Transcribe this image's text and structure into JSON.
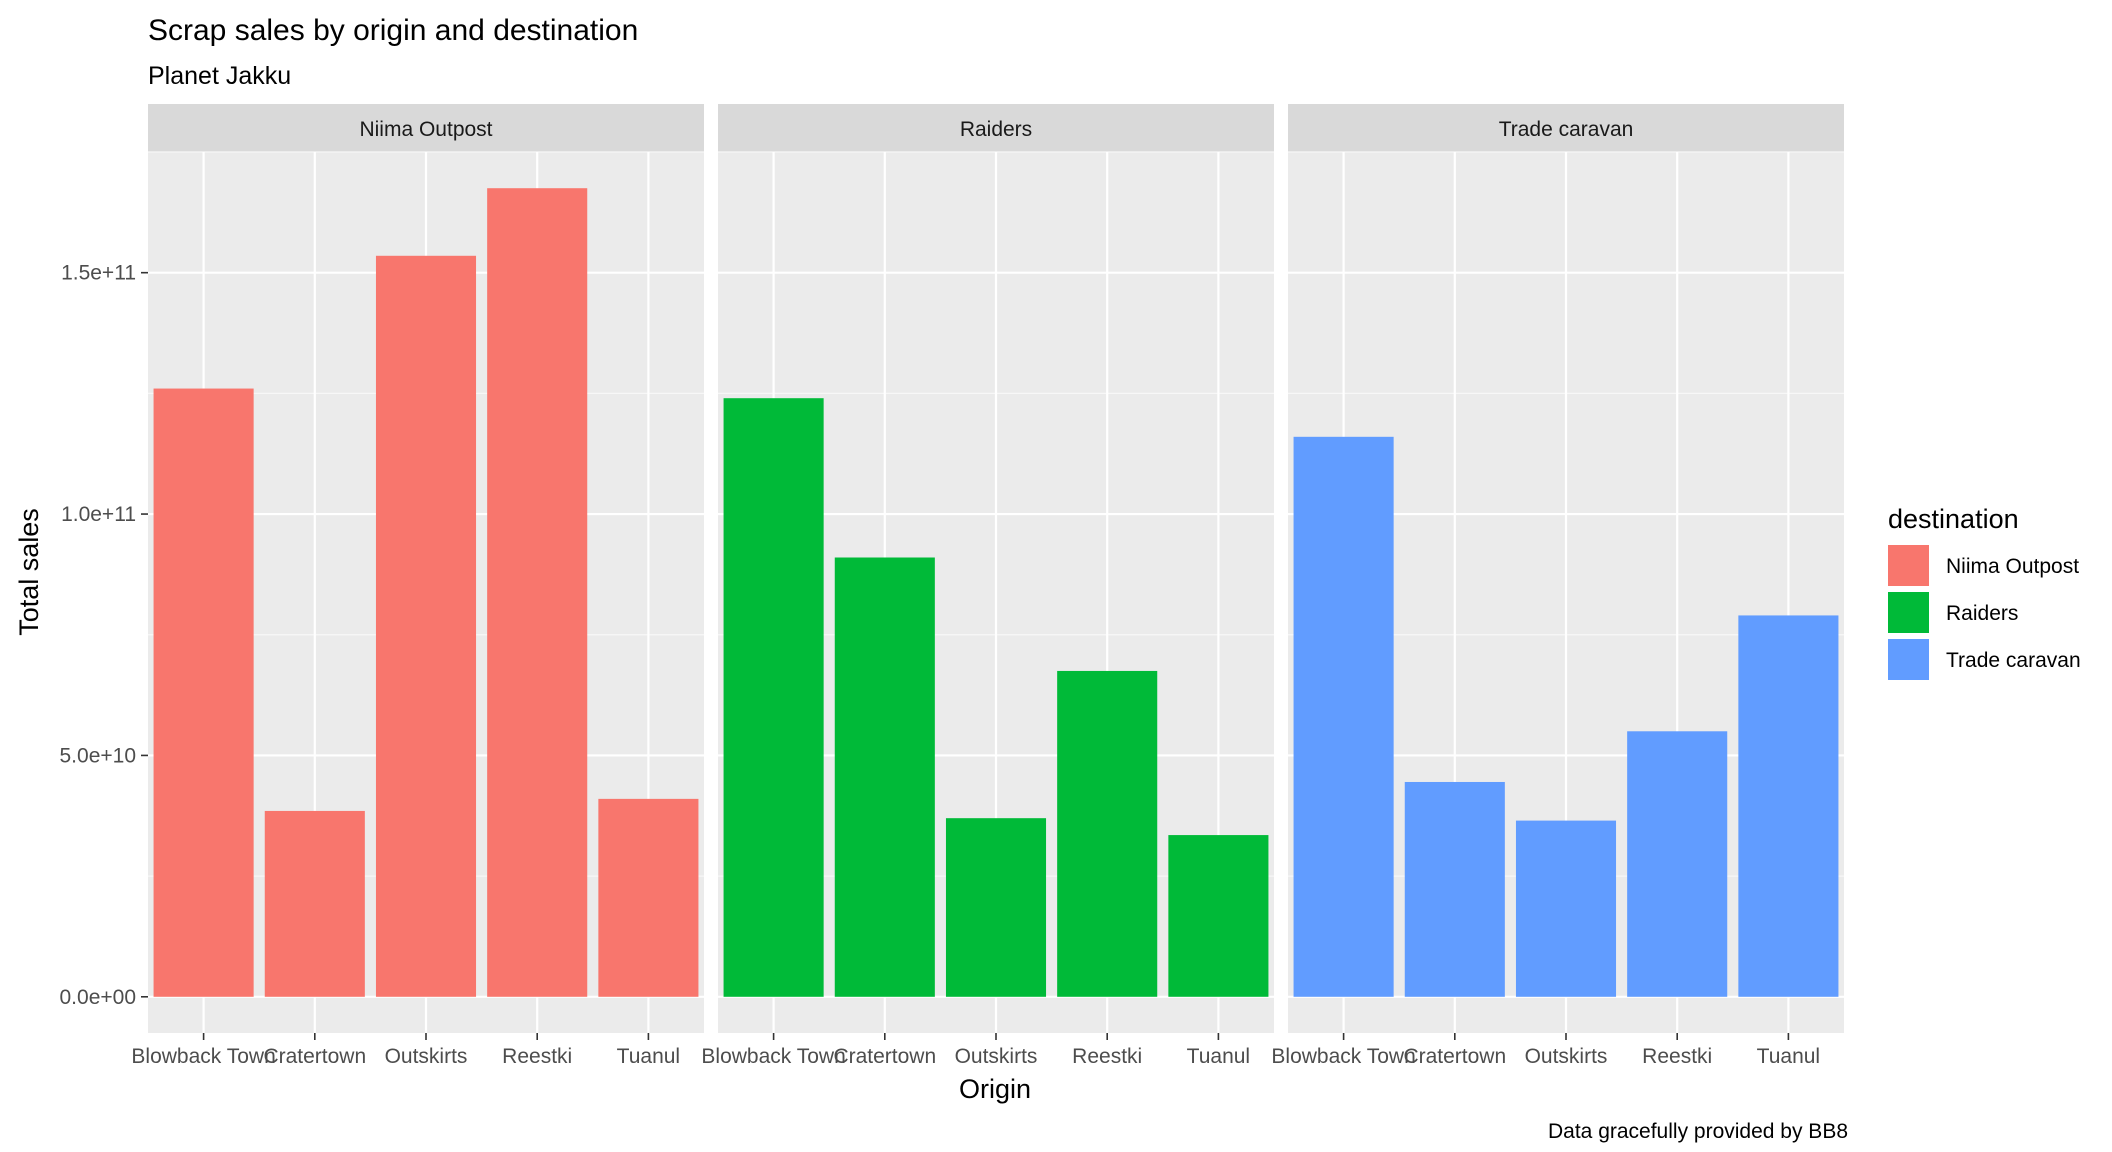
{
  "chart_data": {
    "type": "bar",
    "title": "Scrap sales by origin and destination",
    "subtitle": "Planet Jakku",
    "xlabel": "Origin",
    "ylabel": "Total sales",
    "caption": "Data gracefully provided by BB8",
    "legend_title": "destination",
    "legend_position": "right",
    "facet_by": "destination",
    "categories": [
      "Blowback Town",
      "Cratertown",
      "Outskirts",
      "Reestki",
      "Tuanul"
    ],
    "ylim": [
      -7500000000,
      175000000000
    ],
    "y_ticks": [
      0,
      50000000000,
      100000000000,
      150000000000
    ],
    "y_tick_labels": [
      "0.0e+00",
      "5.0e+10",
      "1.0e+11",
      "1.5e+11"
    ],
    "grid": true,
    "series": [
      {
        "name": "Niima Outpost",
        "color": "#F8766D",
        "values": [
          126000000000,
          38500000000,
          153500000000,
          167500000000,
          41000000000
        ]
      },
      {
        "name": "Raiders",
        "color": "#00BA38",
        "values": [
          124000000000,
          91000000000,
          37000000000,
          67500000000,
          33500000000
        ]
      },
      {
        "name": "Trade caravan",
        "color": "#619CFF",
        "values": [
          116000000000,
          44500000000,
          36500000000,
          55000000000,
          79000000000
        ]
      }
    ]
  }
}
